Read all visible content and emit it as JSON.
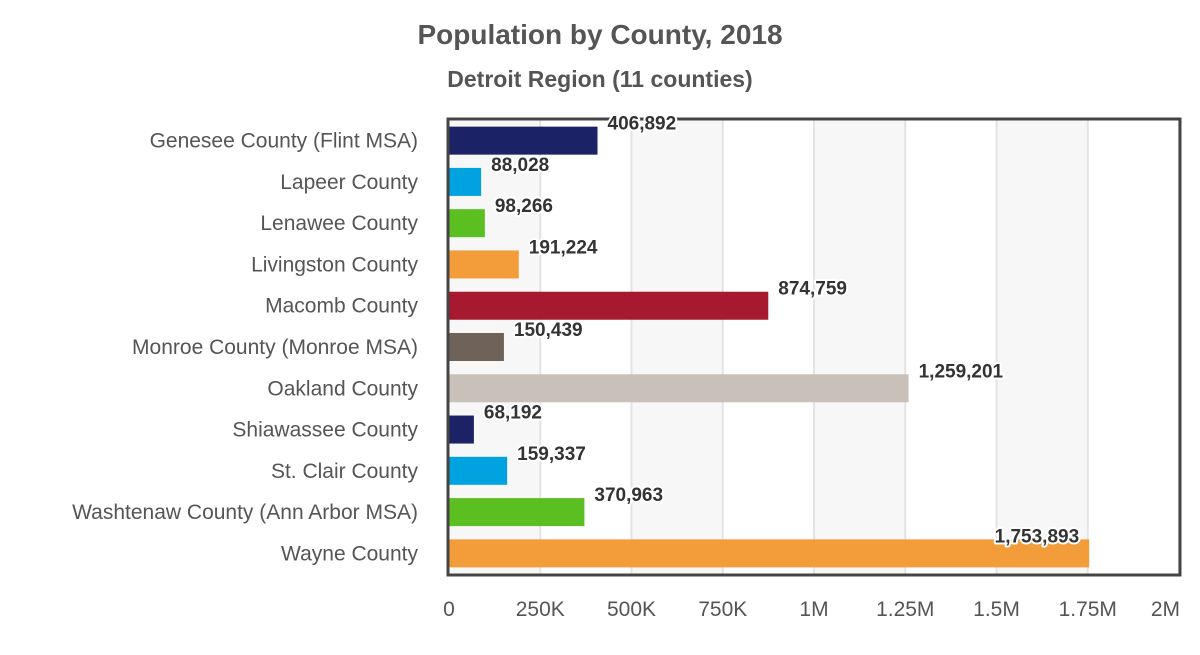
{
  "chart_data": {
    "type": "bar",
    "orientation": "horizontal",
    "title": "Population by County, 2018",
    "subtitle": "Detroit Region (11 counties)",
    "categories": [
      "Genesee County (Flint MSA)",
      "Lapeer County",
      "Lenawee County",
      "Livingston County",
      "Macomb County",
      "Monroe County (Monroe MSA)",
      "Oakland County",
      "Shiawassee County",
      "St. Clair County",
      "Washtenaw County (Ann Arbor MSA)",
      "Wayne County"
    ],
    "values": [
      406892,
      88028,
      98266,
      191224,
      874759,
      150439,
      1259201,
      68192,
      159337,
      370963,
      1753893
    ],
    "data_labels": [
      "406,892",
      "88,028",
      "98,266",
      "191,224",
      "874,759",
      "150,439",
      "1,259,201",
      "68,192",
      "159,337",
      "370,963",
      "1,753,893"
    ],
    "colors": [
      "#1b2366",
      "#00a3e0",
      "#5bbf21",
      "#f39c3a",
      "#a6192e",
      "#6e6259",
      "#c9c1b9",
      "#1b2366",
      "#00a3e0",
      "#5bbf21",
      "#f39c3a"
    ],
    "xlim": [
      0,
      2000000
    ],
    "ticks": [
      0,
      250000,
      500000,
      750000,
      1000000,
      1250000,
      1500000,
      1750000,
      2000000
    ],
    "tick_labels": [
      "0",
      "250K",
      "500K",
      "750K",
      "1M",
      "1.25M",
      "1.5M",
      "1.75M",
      "2M"
    ],
    "grid": true,
    "legend": "none"
  }
}
